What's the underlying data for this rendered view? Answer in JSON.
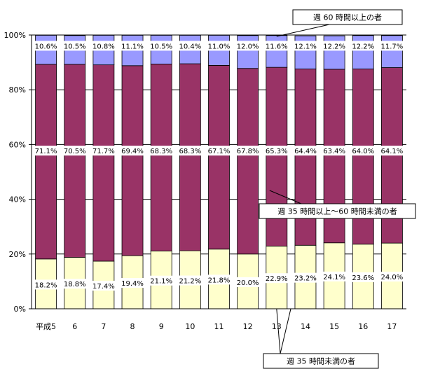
{
  "chart_data": {
    "type": "bar",
    "stacked": true,
    "percent": true,
    "categories": [
      "平成5",
      "6",
      "7",
      "8",
      "9",
      "10",
      "11",
      "12",
      "13",
      "14",
      "15",
      "16",
      "17"
    ],
    "series": [
      {
        "name": "週 35 時間未満の者",
        "color": "#ffffcc",
        "values": [
          18.2,
          18.8,
          17.4,
          19.4,
          21.1,
          21.2,
          21.8,
          20.0,
          22.9,
          23.2,
          24.1,
          23.6,
          24.0
        ],
        "labels": [
          "18.2%",
          "18.8%",
          "17.4%",
          "19.4%",
          "21.1%",
          "21.2%",
          "21.8%",
          "20.0%",
          "22.9%",
          "23.2%",
          "24.1%",
          "23.6%",
          "24.0%"
        ]
      },
      {
        "name": "週 35 時間以上～60 時間未満の者",
        "color": "#993366",
        "values": [
          71.1,
          70.5,
          71.7,
          69.4,
          68.3,
          68.3,
          67.1,
          67.8,
          65.3,
          64.4,
          63.4,
          64.0,
          64.1
        ],
        "labels": [
          "71.1%",
          "70.5%",
          "71.7%",
          "69.4%",
          "68.3%",
          "68.3%",
          "67.1%",
          "67.8%",
          "65.3%",
          "64.4%",
          "63.4%",
          "64.0%",
          "64.1%"
        ]
      },
      {
        "name": "週 60 時間以上の者",
        "color": "#9999ff",
        "values": [
          10.6,
          10.5,
          10.8,
          11.1,
          10.5,
          10.4,
          11.0,
          12.0,
          11.6,
          12.1,
          12.2,
          12.2,
          11.7
        ],
        "labels": [
          "10.6%",
          "10.5%",
          "10.8%",
          "11.1%",
          "10.5%",
          "10.4%",
          "11.0%",
          "12.0%",
          "11.6%",
          "12.1%",
          "12.2%",
          "12.2%",
          "11.7%"
        ]
      }
    ],
    "ylim": [
      0,
      100
    ],
    "yticks": [
      "0%",
      "20%",
      "40%",
      "60%",
      "80%",
      "100%"
    ],
    "grid": true,
    "legend": "callouts"
  }
}
